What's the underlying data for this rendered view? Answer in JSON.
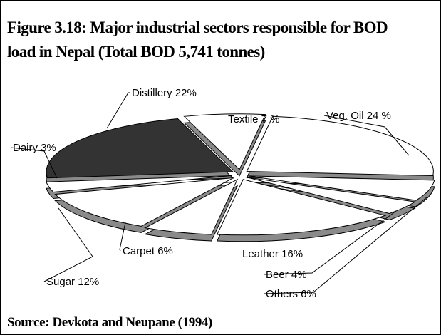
{
  "chart_data": {
    "type": "pie",
    "projection": "3d",
    "exploded": true,
    "title": [
      "Figure 3.18: Major industrial sectors responsible for BOD",
      "load in Nepal (Total BOD 5,741 tonnes)"
    ],
    "source": "Source: Devkota and Neupane (1994)",
    "values": [
      24,
      6,
      4,
      16,
      6,
      12,
      3,
      22,
      7
    ],
    "value_labels": [
      "Veg. Oil 24 %",
      "Others 6%",
      "Beer 4%",
      "Leather 16%",
      "Carpet 6%",
      "Sugar 12%",
      "Dairy 3%",
      "Distillery 22%",
      "Textile 7 %"
    ],
    "colors": [
      "#ffffff",
      "#ffffff",
      "#ffffff",
      "#ffffff",
      "#ffffff",
      "#ffffff",
      "#ffffff",
      "#333333",
      "#ffffff"
    ]
  }
}
